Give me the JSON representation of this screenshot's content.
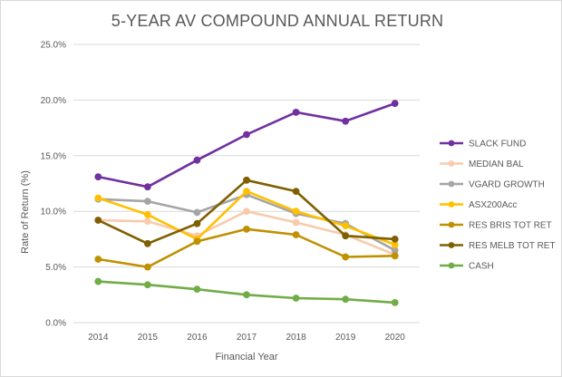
{
  "chart_data": {
    "type": "line",
    "title": "5-YEAR AV COMPOUND ANNUAL RETURN",
    "xlabel": "Financial Year",
    "ylabel": "Rate of Return (%)",
    "ylim": [
      0,
      25
    ],
    "y_ticks": [
      "0.0%",
      "5.0%",
      "10.0%",
      "15.0%",
      "20.0%",
      "25.0%"
    ],
    "categories": [
      "2014",
      "2015",
      "2016",
      "2017",
      "2018",
      "2019",
      "2020"
    ],
    "grid": true,
    "legend_position": "right",
    "series": [
      {
        "name": "SLACK FUND",
        "color": "#7030a0",
        "values": [
          13.1,
          12.2,
          14.6,
          16.9,
          18.9,
          18.1,
          19.7
        ]
      },
      {
        "name": "MEDIAN BAL",
        "color": "#f8cbad",
        "values": [
          9.2,
          9.1,
          7.8,
          10.0,
          9.0,
          7.9,
          6.1
        ]
      },
      {
        "name": "VGARD GROWTH",
        "color": "#a5a5a5",
        "values": [
          11.1,
          10.9,
          9.9,
          11.5,
          9.8,
          8.9,
          6.5
        ]
      },
      {
        "name": "ASX200Acc",
        "color": "#ffc000",
        "values": [
          11.2,
          9.7,
          7.5,
          11.8,
          10.0,
          8.7,
          7.0
        ]
      },
      {
        "name": "RES BRIS TOT RET",
        "color": "#bf9000",
        "values": [
          5.7,
          5.0,
          7.3,
          8.4,
          7.9,
          5.9,
          6.0
        ]
      },
      {
        "name": "RES MELB TOT RET",
        "color": "#7f6000",
        "values": [
          9.2,
          7.1,
          8.9,
          12.8,
          11.8,
          7.8,
          7.5
        ]
      },
      {
        "name": "CASH",
        "color": "#70ad47",
        "values": [
          3.7,
          3.4,
          3.0,
          2.5,
          2.2,
          2.1,
          1.8
        ]
      }
    ]
  }
}
